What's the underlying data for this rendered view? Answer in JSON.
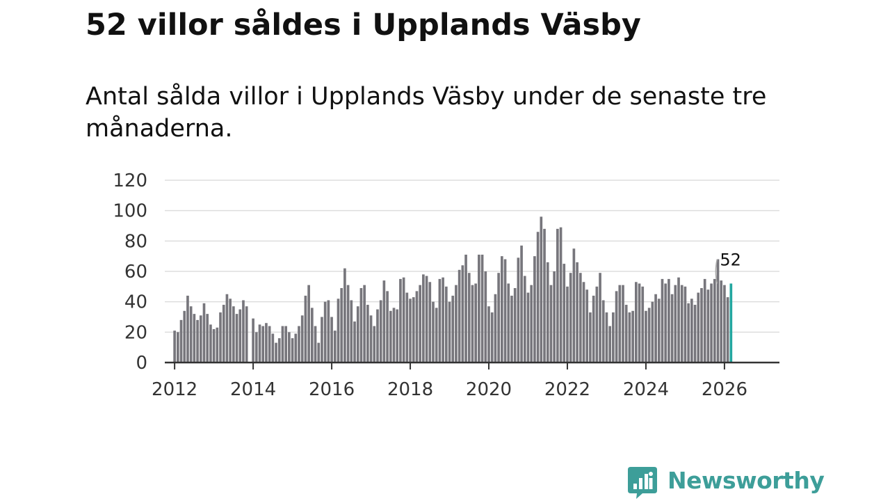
{
  "title": "52 villor såldes i Upplands Väsby",
  "subtitle": "Antal sålda villor i Upplands Väsby under de senaste tre månaderna.",
  "brand": {
    "name": "Newsworthy",
    "icon": "newsworthy-chart-bubble-icon"
  },
  "colors": {
    "bar": "#77767c",
    "highlight": "#23a7a0",
    "grid": "#dddddd",
    "axis": "#333333",
    "brand": "#3d9e99"
  },
  "chart_data": {
    "type": "bar",
    "title": "52 villor såldes i Upplands Väsby",
    "xlabel": "",
    "ylabel": "",
    "ylim": [
      0,
      120
    ],
    "yticks": [
      0,
      20,
      40,
      60,
      80,
      100,
      120
    ],
    "xlim": [
      2011.75,
      2027.4
    ],
    "xticks": [
      2012,
      2014,
      2016,
      2018,
      2020,
      2022,
      2024,
      2026
    ],
    "xtick_labels": [
      "2012",
      "2014",
      "2016",
      "2018",
      "2020",
      "2022",
      "2024",
      "2026"
    ],
    "series_start": {
      "year": 2012,
      "month": 1
    },
    "gap_months": [
      [
        2013,
        12
      ]
    ],
    "values": [
      21,
      20,
      28,
      34,
      44,
      37,
      32,
      28,
      31,
      39,
      32,
      25,
      22,
      23,
      33,
      38,
      45,
      42,
      37,
      32,
      35,
      41,
      37,
      29,
      20,
      25,
      24,
      26,
      24,
      19,
      13,
      16,
      24,
      24,
      20,
      16,
      19,
      24,
      31,
      44,
      51,
      36,
      24,
      13,
      30,
      40,
      41,
      30,
      21,
      42,
      49,
      62,
      51,
      41,
      27,
      37,
      49,
      51,
      38,
      31,
      24,
      35,
      41,
      54,
      47,
      34,
      36,
      35,
      55,
      56,
      46,
      42,
      43,
      47,
      51,
      58,
      57,
      53,
      40,
      36,
      55,
      56,
      50,
      40,
      44,
      51,
      61,
      64,
      71,
      59,
      51,
      52,
      71,
      71,
      60,
      37,
      33,
      45,
      59,
      70,
      68,
      52,
      44,
      49,
      69,
      77,
      57,
      46,
      51,
      70,
      86,
      96,
      88,
      66,
      51,
      60,
      88,
      89,
      65,
      50,
      59,
      75,
      66,
      59,
      53,
      48,
      33,
      44,
      50,
      59,
      41,
      33,
      24,
      33,
      47,
      51,
      51,
      38,
      33,
      34,
      53,
      52,
      50,
      34,
      36,
      40,
      45,
      42,
      55,
      52,
      55,
      45,
      51,
      56,
      51,
      50,
      39,
      42,
      38,
      46,
      49,
      55,
      48,
      52,
      55,
      68,
      54,
      51,
      43,
      52
    ],
    "highlight": {
      "index": 169,
      "value": 52,
      "label": "52"
    },
    "highlight_range": {
      "value": 52,
      "low": 52,
      "high": 68
    }
  }
}
